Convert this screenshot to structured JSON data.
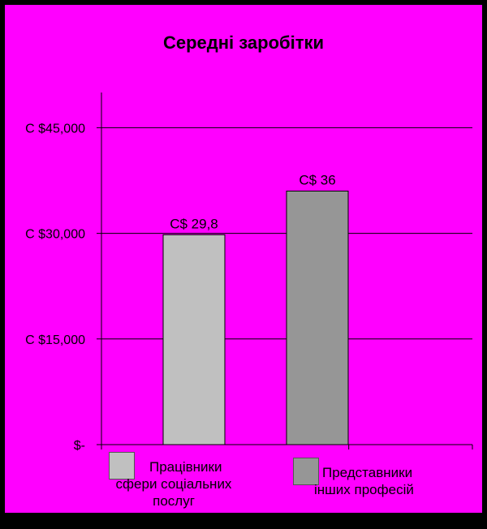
{
  "chart_data": {
    "type": "bar",
    "title": "Середні заробітки",
    "categories": [
      "Працівники сфери соціальних послуг",
      "Представники інших професій"
    ],
    "values": [
      29.8,
      36
    ],
    "plot_values": [
      29800,
      36000
    ],
    "data_labels": [
      "C$ 29,8",
      "C$ 36"
    ],
    "ylim": [
      0,
      50000
    ],
    "yticks": [
      {
        "value": 0,
        "label": "$-"
      },
      {
        "value": 15000,
        "label": "C $15,000"
      },
      {
        "value": 30000,
        "label": "C $30,000"
      },
      {
        "value": 45000,
        "label": "C $45,000"
      }
    ],
    "grid": true,
    "legend": "bottom",
    "colors": {
      "background": "#ff00ff",
      "bar1": "#c0c0c0",
      "bar2": "#969696",
      "grid": "#000000"
    }
  },
  "legend": [
    {
      "line1": "Працівники",
      "line2": "сфери соціальних",
      "line3": "послуг"
    },
    {
      "line1": "Представники",
      "line2": "інших професій"
    }
  ]
}
